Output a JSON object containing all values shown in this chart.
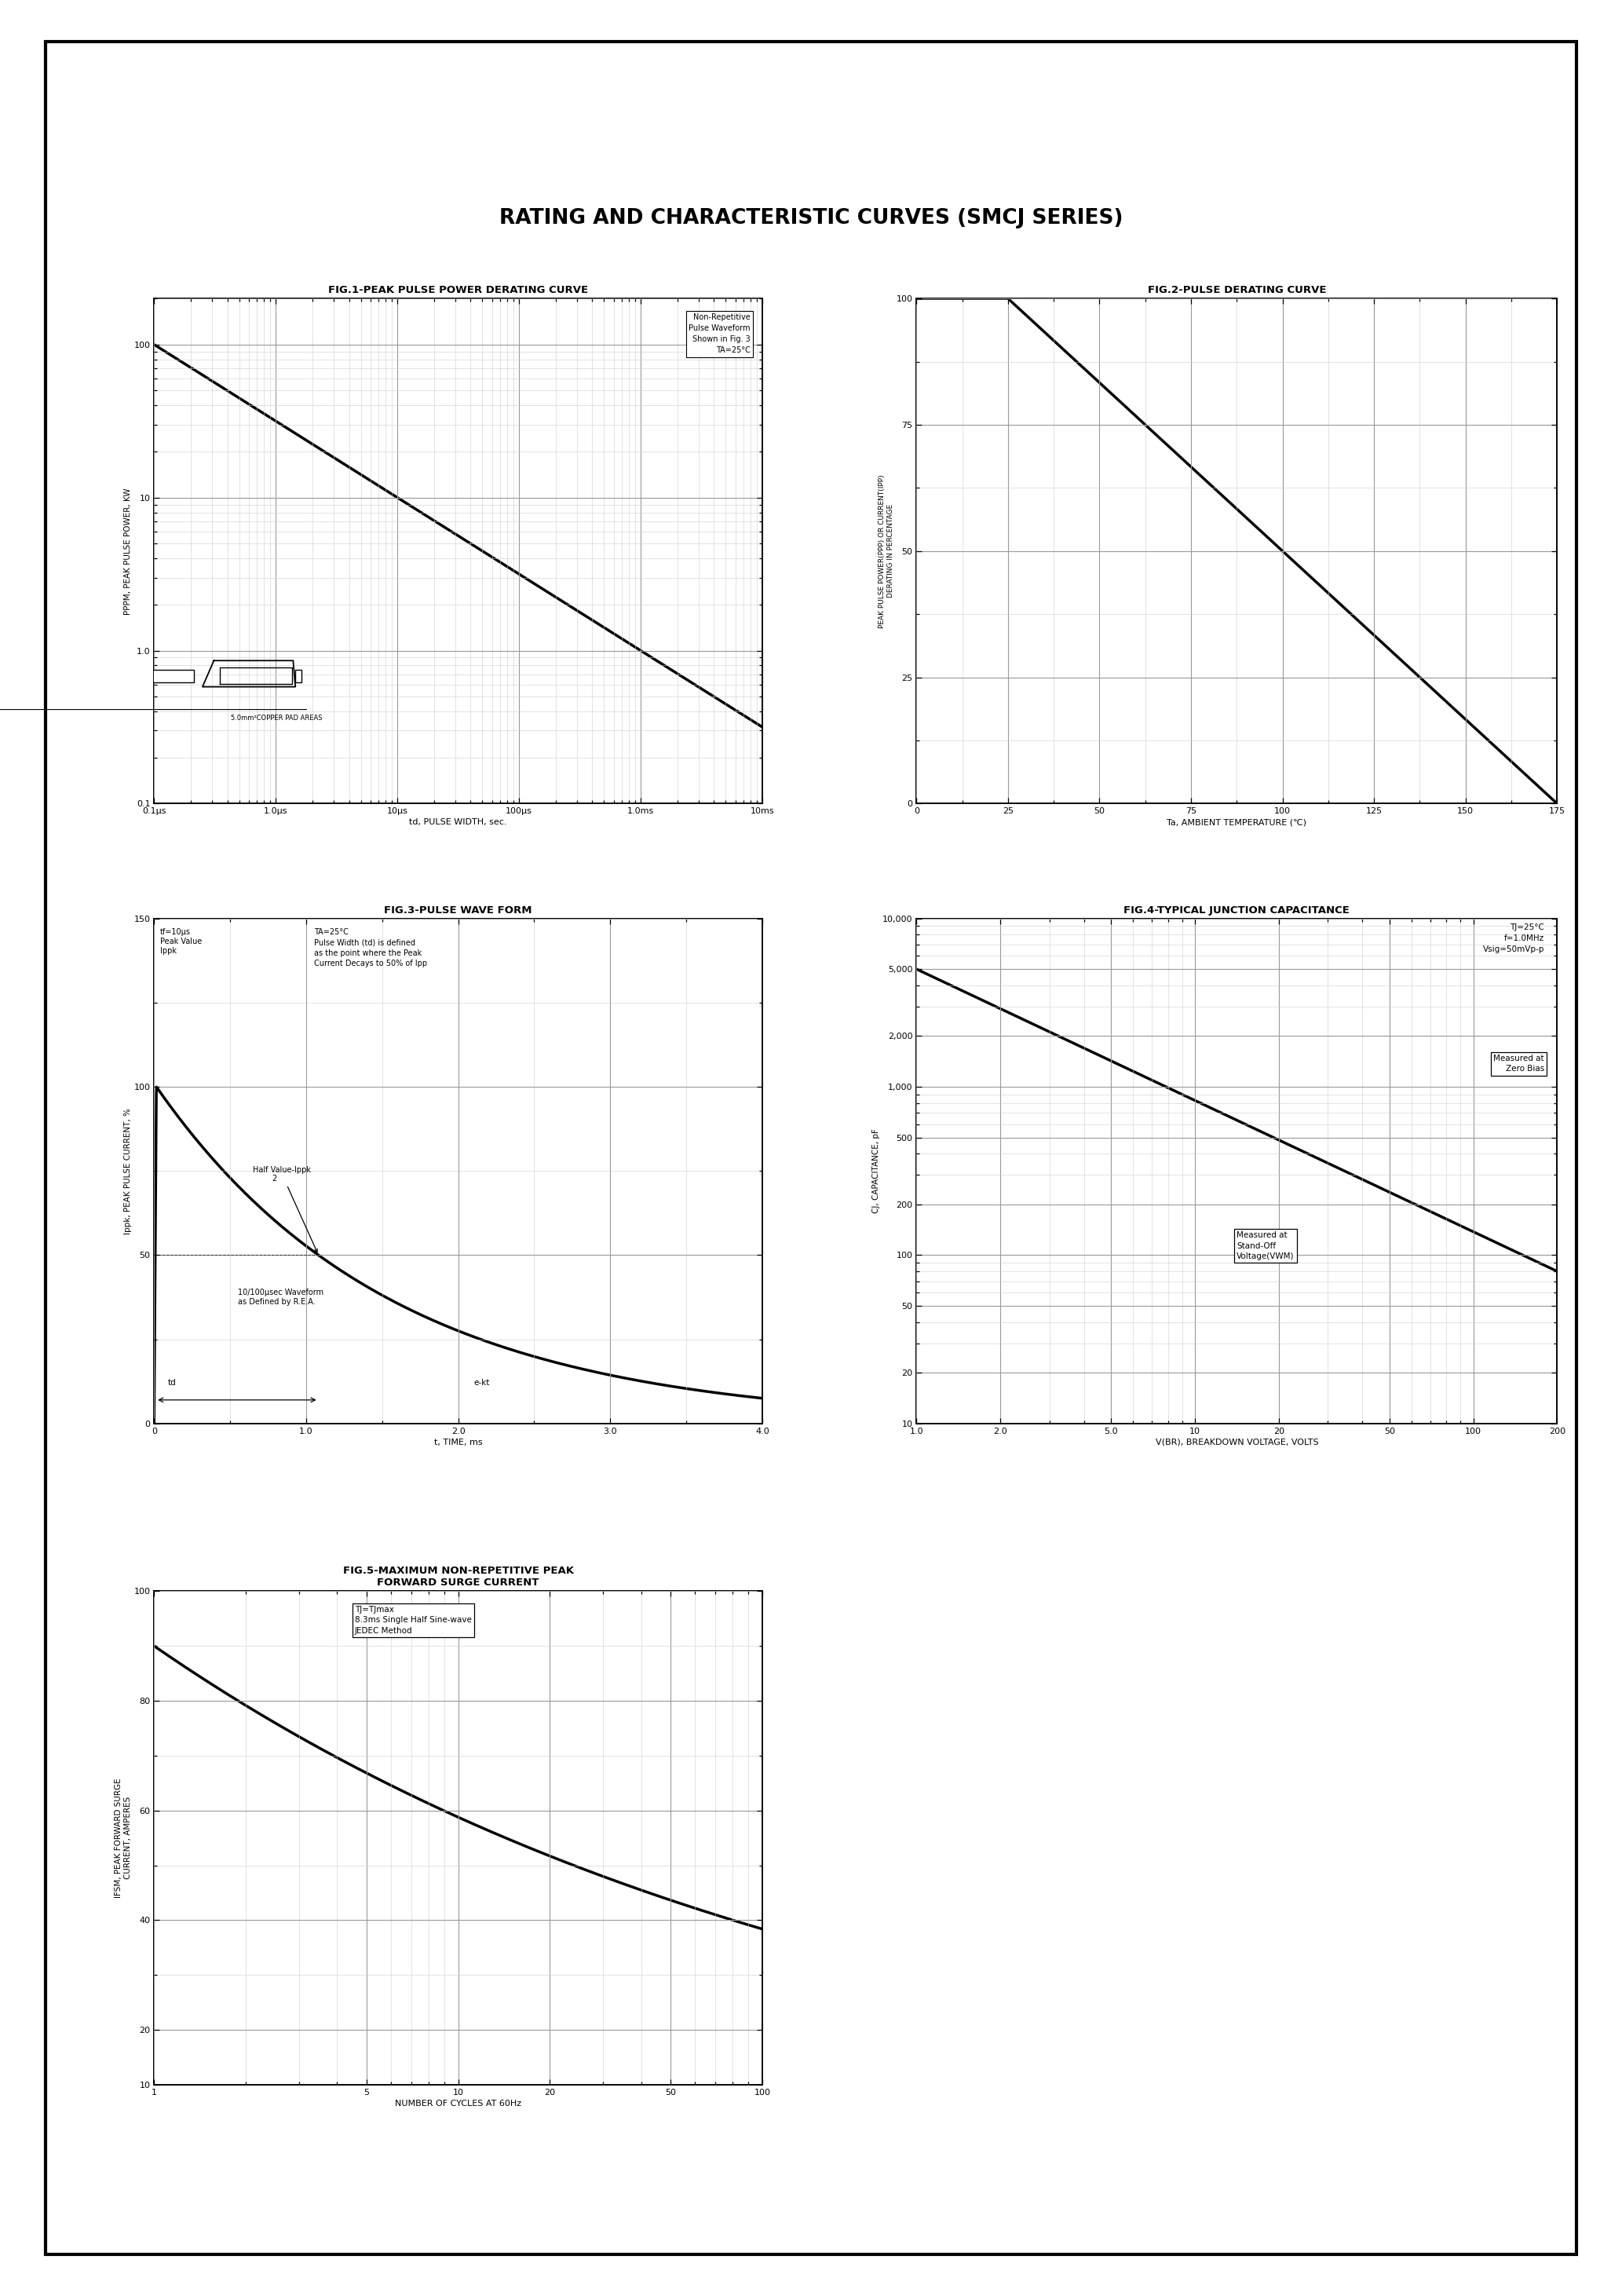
{
  "page_title": "RATING AND CHARACTERISTIC CURVES (SMCJ SERIES)",
  "fig1_title": "FIG.1-PEAK PULSE POWER DERATING CURVE",
  "fig2_title": "FIG.2-PULSE DERATING CURVE",
  "fig3_title": "FIG.3-PULSE WAVE FORM",
  "fig4_title": "FIG.4-TYPICAL JUNCTION CAPACITANCE",
  "fig5_title": "FIG.5-MAXIMUM NON-REPETITIVE PEAK\nFORWARD SURGE CURRENT",
  "fig1_ylabel": "PPPM, PEAK PULSE POWER, KW",
  "fig1_xlabel": "td, PULSE WIDTH, sec.",
  "fig2_ylabel": "PEAK PULSE POWER(PPP) OR CURRENT(IPP)\nDERATING IN PERCENTAGE",
  "fig2_xlabel": "Ta, AMBIENT TEMPERATURE (℃)",
  "fig3_ylabel": "Ippk, PEAK PULSE CURRENT, %",
  "fig3_xlabel": "t, TIME, ms",
  "fig4_ylabel": "CJ, CAPACITANCE, pF",
  "fig4_xlabel": "V(BR), BREAKDOWN VOLTAGE, VOLTS",
  "fig5_ylabel": "IFSM, PEAK FORWARD SURGE\nCURRENT, AMPERES",
  "fig5_xlabel": "NUMBER OF CYCLES AT 60Hz",
  "bg": "#ffffff",
  "lc": "#000000",
  "gc_major": "#999999",
  "gc_minor": "#cccccc"
}
